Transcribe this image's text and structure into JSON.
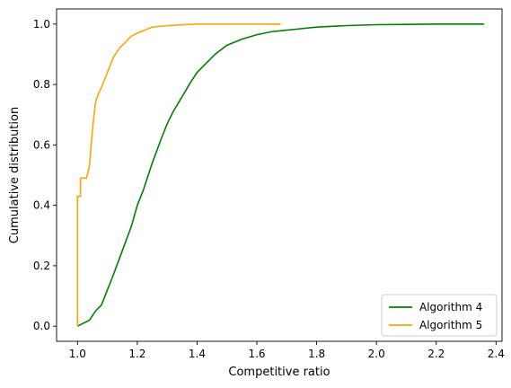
{
  "chart_data": {
    "type": "line",
    "xlabel": "Competitive ratio",
    "ylabel": "Cumulative distribution",
    "xlim": [
      0.93,
      2.42
    ],
    "ylim": [
      -0.05,
      1.05
    ],
    "x_ticks": [
      "1.0",
      "1.2",
      "1.4",
      "1.6",
      "1.8",
      "2.0",
      "2.2",
      "2.4"
    ],
    "y_ticks": [
      "0.0",
      "0.2",
      "0.4",
      "0.6",
      "0.8",
      "1.0"
    ],
    "grid": false,
    "legend_position": "lower-right",
    "series": [
      {
        "name": "Algorithm 4",
        "color": "#008000",
        "x": [
          1.0,
          1.02,
          1.04,
          1.06,
          1.08,
          1.1,
          1.12,
          1.15,
          1.18,
          1.2,
          1.22,
          1.25,
          1.28,
          1.3,
          1.32,
          1.35,
          1.38,
          1.4,
          1.43,
          1.46,
          1.5,
          1.55,
          1.6,
          1.65,
          1.7,
          1.75,
          1.8,
          1.9,
          2.0,
          2.1,
          2.2,
          2.36
        ],
        "y": [
          0.0,
          0.01,
          0.02,
          0.05,
          0.07,
          0.12,
          0.17,
          0.25,
          0.33,
          0.4,
          0.45,
          0.54,
          0.62,
          0.67,
          0.71,
          0.76,
          0.81,
          0.84,
          0.87,
          0.9,
          0.93,
          0.95,
          0.965,
          0.975,
          0.98,
          0.985,
          0.99,
          0.995,
          0.998,
          0.999,
          1.0,
          1.0
        ]
      },
      {
        "name": "Algorithm 5",
        "color": "#FFA500",
        "x": [
          1.0,
          1.0,
          1.01,
          1.01,
          1.03,
          1.04,
          1.05,
          1.06,
          1.07,
          1.08,
          1.1,
          1.12,
          1.14,
          1.16,
          1.18,
          1.2,
          1.25,
          1.3,
          1.4,
          1.5,
          1.68
        ],
        "y": [
          0.0,
          0.43,
          0.43,
          0.49,
          0.49,
          0.53,
          0.65,
          0.74,
          0.77,
          0.79,
          0.84,
          0.89,
          0.92,
          0.94,
          0.96,
          0.97,
          0.99,
          0.995,
          1.0,
          1.0,
          1.0
        ]
      }
    ]
  }
}
